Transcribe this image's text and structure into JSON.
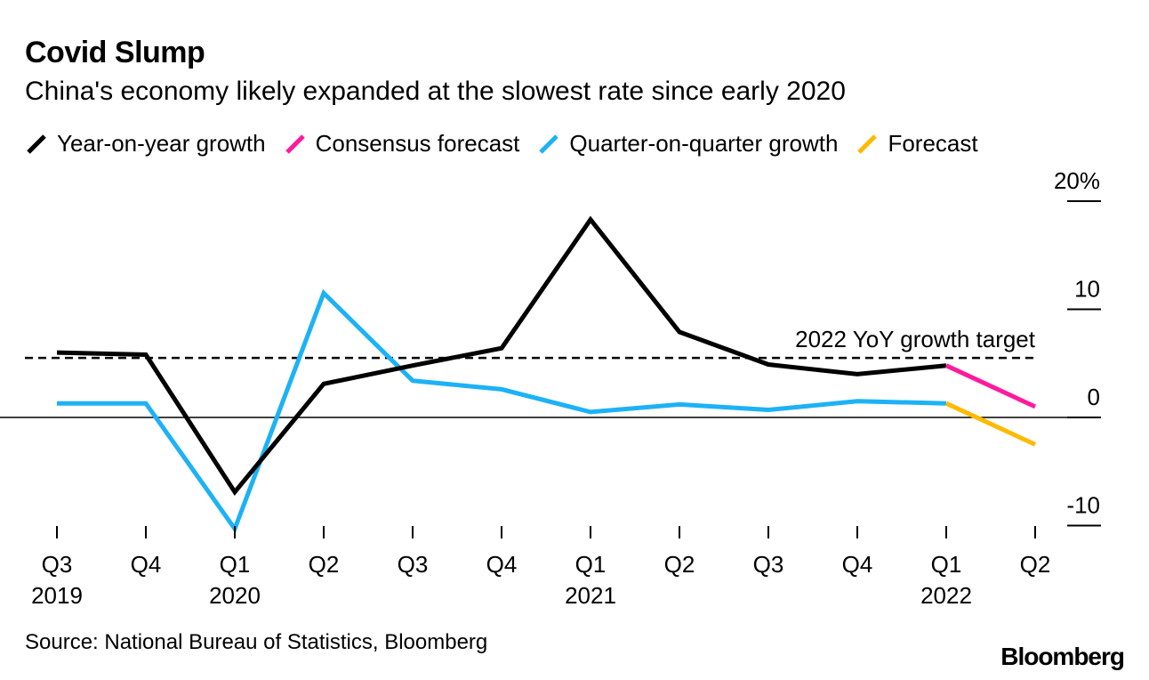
{
  "chart_data": {
    "type": "line",
    "title": "Covid Slump",
    "subtitle": "China's economy likely expanded at the slowest rate since early 2020",
    "categories": [
      "Q3",
      "Q4",
      "Q1",
      "Q2",
      "Q3",
      "Q4",
      "Q1",
      "Q2",
      "Q3",
      "Q4",
      "Q1",
      "Q2"
    ],
    "year_labels": [
      {
        "index": 0,
        "label": "2019"
      },
      {
        "index": 2,
        "label": "2020"
      },
      {
        "index": 6,
        "label": "2021"
      },
      {
        "index": 10,
        "label": "2022"
      }
    ],
    "series": [
      {
        "name": "Year-on-year growth",
        "color": "#000000",
        "points": [
          [
            0,
            6.0
          ],
          [
            1,
            5.8
          ],
          [
            2,
            -6.9
          ],
          [
            3,
            3.1
          ],
          [
            4,
            4.8
          ],
          [
            5,
            6.4
          ],
          [
            6,
            18.3
          ],
          [
            7,
            7.9
          ],
          [
            8,
            4.9
          ],
          [
            9,
            4.0
          ],
          [
            10,
            4.8
          ]
        ]
      },
      {
        "name": "Consensus forecast",
        "color": "#ff1a9c",
        "points": [
          [
            10,
            4.8
          ],
          [
            11,
            1.0
          ]
        ]
      },
      {
        "name": "Quarter-on-quarter growth",
        "color": "#1cb2f5",
        "points": [
          [
            0,
            1.3
          ],
          [
            1,
            1.3
          ],
          [
            2,
            -10.3
          ],
          [
            3,
            11.5
          ],
          [
            4,
            3.4
          ],
          [
            5,
            2.6
          ],
          [
            6,
            0.5
          ],
          [
            7,
            1.2
          ],
          [
            8,
            0.7
          ],
          [
            9,
            1.5
          ],
          [
            10,
            1.3
          ]
        ]
      },
      {
        "name": "Forecast",
        "color": "#ffba00",
        "points": [
          [
            10,
            1.3
          ],
          [
            11,
            -2.5
          ]
        ]
      }
    ],
    "reference_line": {
      "label": "2022 YoY growth target",
      "value": 5.5
    },
    "yticks": [
      {
        "value": 20,
        "label": "20%"
      },
      {
        "value": 10,
        "label": "10"
      },
      {
        "value": 0,
        "label": "0"
      },
      {
        "value": -10,
        "label": "-10"
      }
    ],
    "ylim": [
      -10,
      20
    ],
    "xlabel": "",
    "ylabel": "",
    "legend_position": "top-left",
    "source": "Source: National Bureau of Statistics, Bloomberg",
    "brand": "Bloomberg"
  }
}
